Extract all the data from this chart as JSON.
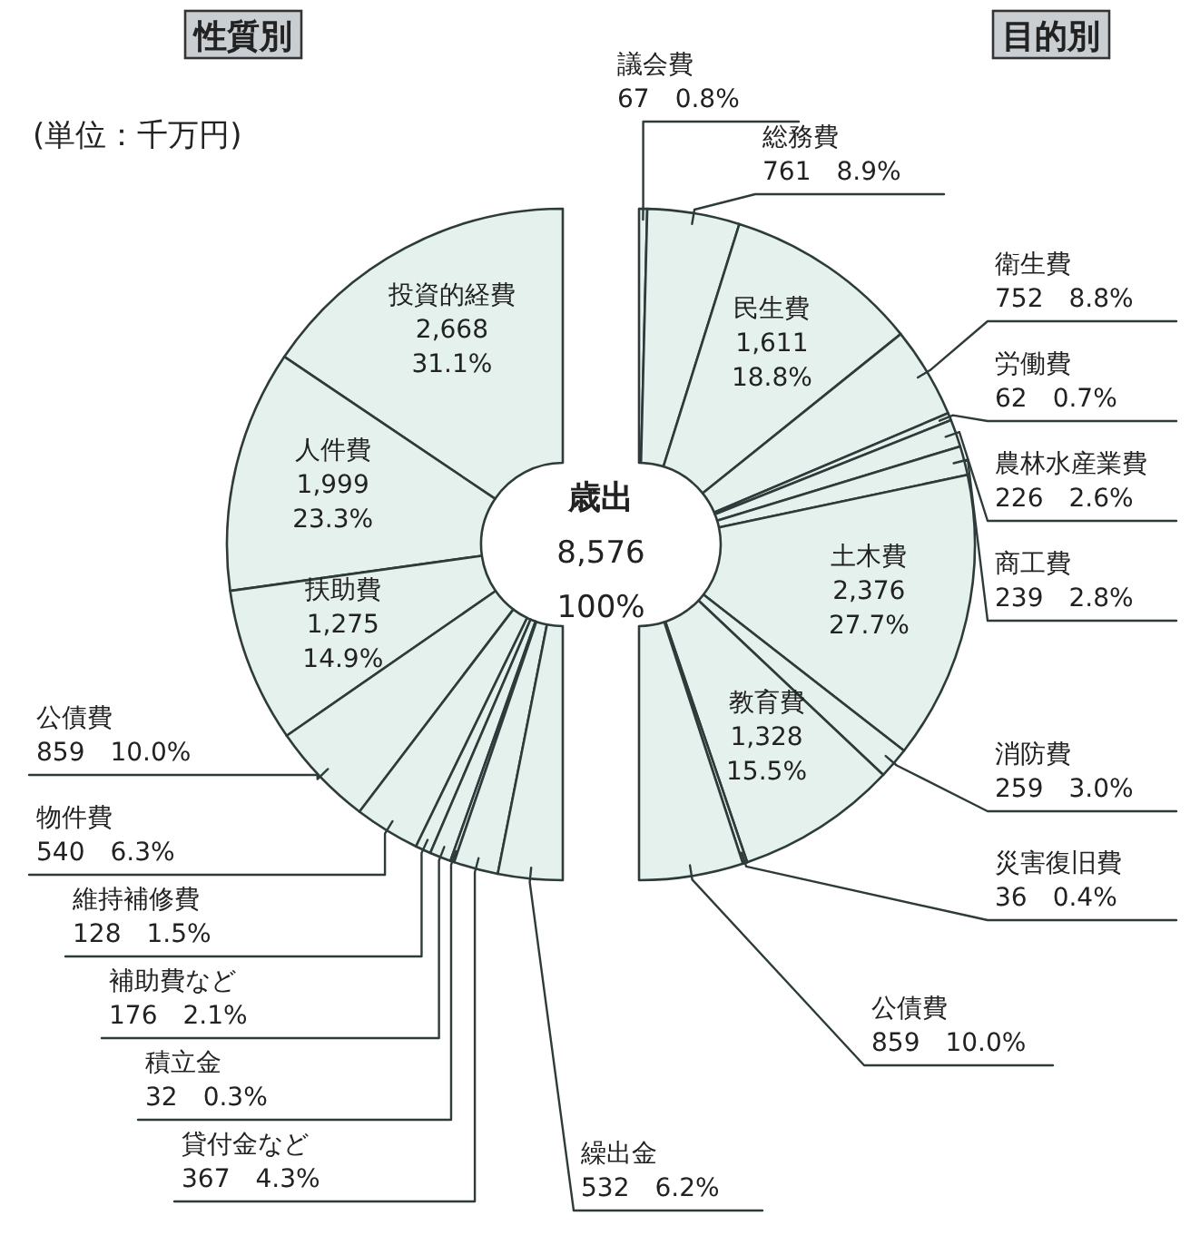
{
  "chart_data": [
    {
      "type": "donut",
      "title": "性質別",
      "subtitle": "(単位：千万円)",
      "annotations": [
        "歳出",
        "8,576",
        "100%"
      ],
      "categories": [
        "投資的経費",
        "人件費",
        "扶助費",
        "公債費",
        "物件費",
        "維持補修費",
        "補助費など",
        "積立金",
        "貸付金など",
        "繰出金"
      ],
      "values": [
        2668,
        1999,
        1275,
        859,
        540,
        128,
        176,
        32,
        367,
        532
      ],
      "value_labels": [
        "2,668 31.1%",
        "1,999 23.3%",
        "1,275 14.9%",
        "859 10.0%",
        "540 6.3%",
        "128 1.5%",
        "176 2.1%",
        "32 0.3%",
        "367 4.3%",
        "532 6.2%"
      ],
      "colors": [
        "#e4f1ec",
        "#e4f1ec",
        "#e4f1ec",
        "#e4f1ec",
        "#e4f1ec",
        "#e4f1ec",
        "#e4f1ec",
        "#e4f1ec",
        "#e4f1ec",
        "#e4f1ec"
      ]
    },
    {
      "type": "donut",
      "title": "目的別",
      "categories": [
        "議会費",
        "総務費",
        "民生費",
        "衛生費",
        "労働費",
        "農林水産業費",
        "商工費",
        "土木費",
        "消防費",
        "教育費",
        "災害復旧費",
        "公債費"
      ],
      "values": [
        67,
        761,
        1611,
        752,
        62,
        226,
        239,
        2376,
        259,
        1328,
        36,
        859
      ],
      "value_labels": [
        "67 0.8%",
        "761 8.9%",
        "1,611 18.8%",
        "752 8.8%",
        "62 0.7%",
        "226 2.6%",
        "239 2.8%",
        "2,376 27.7%",
        "259 3.0%",
        "1,328 15.5%",
        "36 0.4%",
        "859 10.0%"
      ],
      "colors": [
        "#e4f1ec",
        "#e4f1ec",
        "#e4f1ec",
        "#e4f1ec",
        "#e4f1ec",
        "#e4f1ec",
        "#e4f1ec",
        "#e4f1ec",
        "#e4f1ec",
        "#e4f1ec",
        "#e4f1ec",
        "#e4f1ec"
      ]
    }
  ]
}
